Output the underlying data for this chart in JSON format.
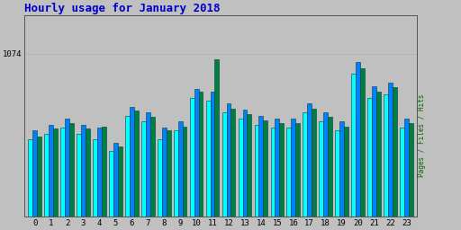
{
  "title": "Hourly usage for January 2018",
  "title_color": "#0000cc",
  "title_fontsize": 9,
  "ylabel_text": "Pages / Files / Hits",
  "ylabel_color": "#006600",
  "ytick_label": "1074",
  "background_color": "#c0c0c0",
  "plot_bg_color": "#c0c0c0",
  "hours": [
    0,
    1,
    2,
    3,
    4,
    5,
    6,
    7,
    8,
    9,
    10,
    11,
    12,
    13,
    14,
    15,
    16,
    17,
    18,
    19,
    20,
    21,
    22,
    23
  ],
  "pages": [
    930,
    940,
    950,
    940,
    930,
    910,
    970,
    960,
    930,
    945,
    1000,
    995,
    975,
    965,
    955,
    950,
    950,
    975,
    960,
    945,
    1040,
    1000,
    1005,
    950
  ],
  "files": [
    945,
    955,
    965,
    955,
    950,
    925,
    985,
    975,
    950,
    960,
    1015,
    1010,
    990,
    980,
    970,
    965,
    965,
    990,
    975,
    960,
    1060,
    1020,
    1025,
    965
  ],
  "hits": [
    935,
    948,
    958,
    948,
    952,
    918,
    978,
    968,
    945,
    952,
    1010,
    1065,
    982,
    972,
    962,
    957,
    957,
    982,
    968,
    952,
    1050,
    1010,
    1018,
    957
  ],
  "bar_color_pages": "#00ffff",
  "bar_color_files": "#0080ff",
  "bar_color_hits": "#008040",
  "bar_edgecolor": "#004040",
  "ylim_min": 800,
  "ylim_max": 1074,
  "ytick_value": 1074,
  "bar_width": 0.27,
  "dpi": 100,
  "fig_width": 5.12,
  "fig_height": 2.56
}
